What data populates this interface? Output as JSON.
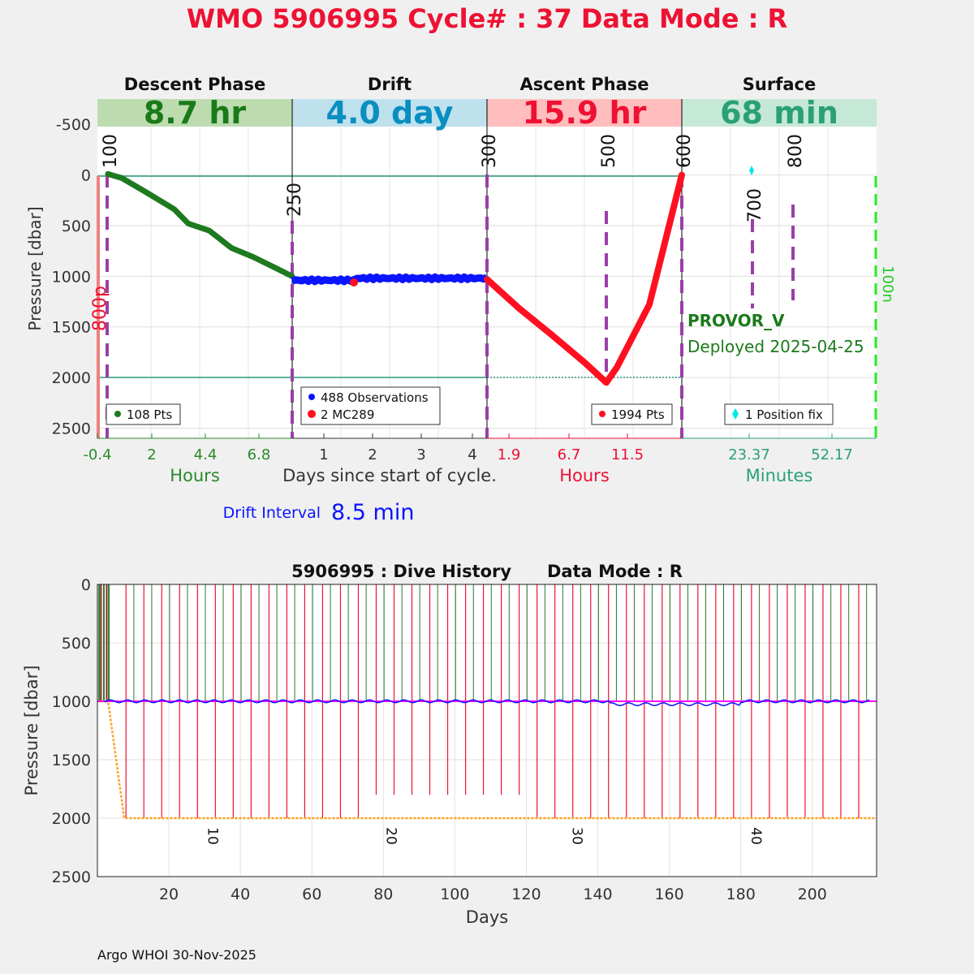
{
  "header": {
    "title": "WMO 5906995   Cycle# : 37   Data Mode : R",
    "title_color": "#ee1133"
  },
  "phases": [
    {
      "name": "Descent Phase",
      "duration": "8.7 hr",
      "band_color": "#bcdcb0",
      "text_color": "#1a7a1a",
      "ticks": [
        "-0.4",
        "2",
        "4.4",
        "6.8"
      ],
      "axis_label": "Hours",
      "axis_color": "#2a8a2a"
    },
    {
      "name": "Drift",
      "duration": "4.0 day",
      "band_color": "#bfe1ee",
      "text_color": "#0a8ec0",
      "ticks": [
        "1",
        "2",
        "3",
        "4"
      ],
      "axis_label": "Days since start of cycle.",
      "axis_color": "#333333"
    },
    {
      "name": "Ascent Phase",
      "duration": "15.9 hr",
      "band_color": "#ffbdbd",
      "text_color": "#ee1133",
      "ticks": [
        "1.9",
        "6.7",
        "11.5"
      ],
      "axis_label": "Hours",
      "axis_color": "#ee1133"
    },
    {
      "name": "Surface",
      "duration": "68 min",
      "band_color": "#c6e8d6",
      "text_color": "#2aa078",
      "ticks": [
        "23.37",
        "52.17"
      ],
      "axis_label": "Minutes",
      "axis_color": "#2aa078"
    }
  ],
  "top_chart": {
    "ylabel": "Pressure [dbar]",
    "yticks": [
      "-500",
      "0",
      "500",
      "1000",
      "1500",
      "2000",
      "2500"
    ],
    "ylim": [
      -750,
      2600
    ],
    "marker_labels": [
      "100",
      "250",
      "300",
      "500",
      "600",
      "700",
      "800"
    ],
    "side_labels": {
      "left_red": "800p",
      "right_green": "100n"
    },
    "float_model": "PROVOR_V",
    "deployed": "Deployed 2025-04-25",
    "legends": {
      "descent": "108 Pts",
      "drift_obs": "488 Observations",
      "drift_mc": "2 MC289",
      "ascent": "1994 Pts",
      "surface": "1 Position fix"
    },
    "colors": {
      "descent": "#1e7a1e",
      "drift": "#0a14ff",
      "ascent": "#ff1020",
      "surface_fix": "#00e8e8",
      "markers": "#9a3fa8"
    }
  },
  "drift_interval": {
    "label": "Drift Interval",
    "value": "8.5 min"
  },
  "bottom_chart": {
    "title": "5906995 : Dive History      Data Mode : R",
    "ylabel": "Pressure [dbar]",
    "xlabel": "Days",
    "xticks": [
      "20",
      "40",
      "60",
      "80",
      "100",
      "120",
      "140",
      "160",
      "180",
      "200"
    ],
    "yticks": [
      "0",
      "500",
      "1000",
      "1500",
      "2000",
      "2500"
    ],
    "xlim": [
      0,
      218
    ],
    "ylim": [
      0,
      2500
    ],
    "cycle_labels": [
      "10",
      "20",
      "30",
      "40"
    ],
    "park_pressure": 1000,
    "profile_pressure": 2000,
    "colors": {
      "descent": "#2a7a2a",
      "ascent": "#ee1133",
      "drift": "#0a14ff",
      "park_line": "#ff00ff",
      "target": "#ffa020"
    }
  },
  "footer": {
    "credit": "Argo WHOI 30-Nov-2025"
  }
}
